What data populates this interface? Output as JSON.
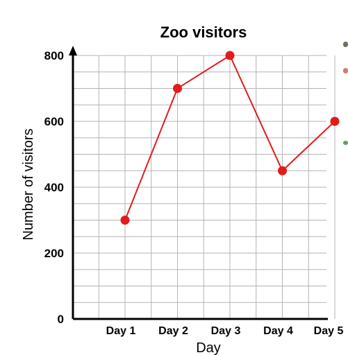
{
  "chart_data": {
    "type": "line",
    "title": "Zoo visitors",
    "xlabel": "Day",
    "ylabel": "Number of visitors",
    "categories": [
      "Day 1",
      "Day 2",
      "Day 3",
      "Day 4",
      "Day 5"
    ],
    "series": [
      {
        "values": [
          300,
          700,
          800,
          450,
          600
        ],
        "color": "#e31b1b"
      }
    ],
    "ylim": [
      0,
      800
    ],
    "yticks": [
      0,
      200,
      400,
      600,
      800
    ],
    "ytick_labels": [
      "0",
      "200",
      "400",
      "600",
      "800"
    ],
    "grid": true,
    "grid_color": "#b3b3b3",
    "marker": "circle"
  }
}
